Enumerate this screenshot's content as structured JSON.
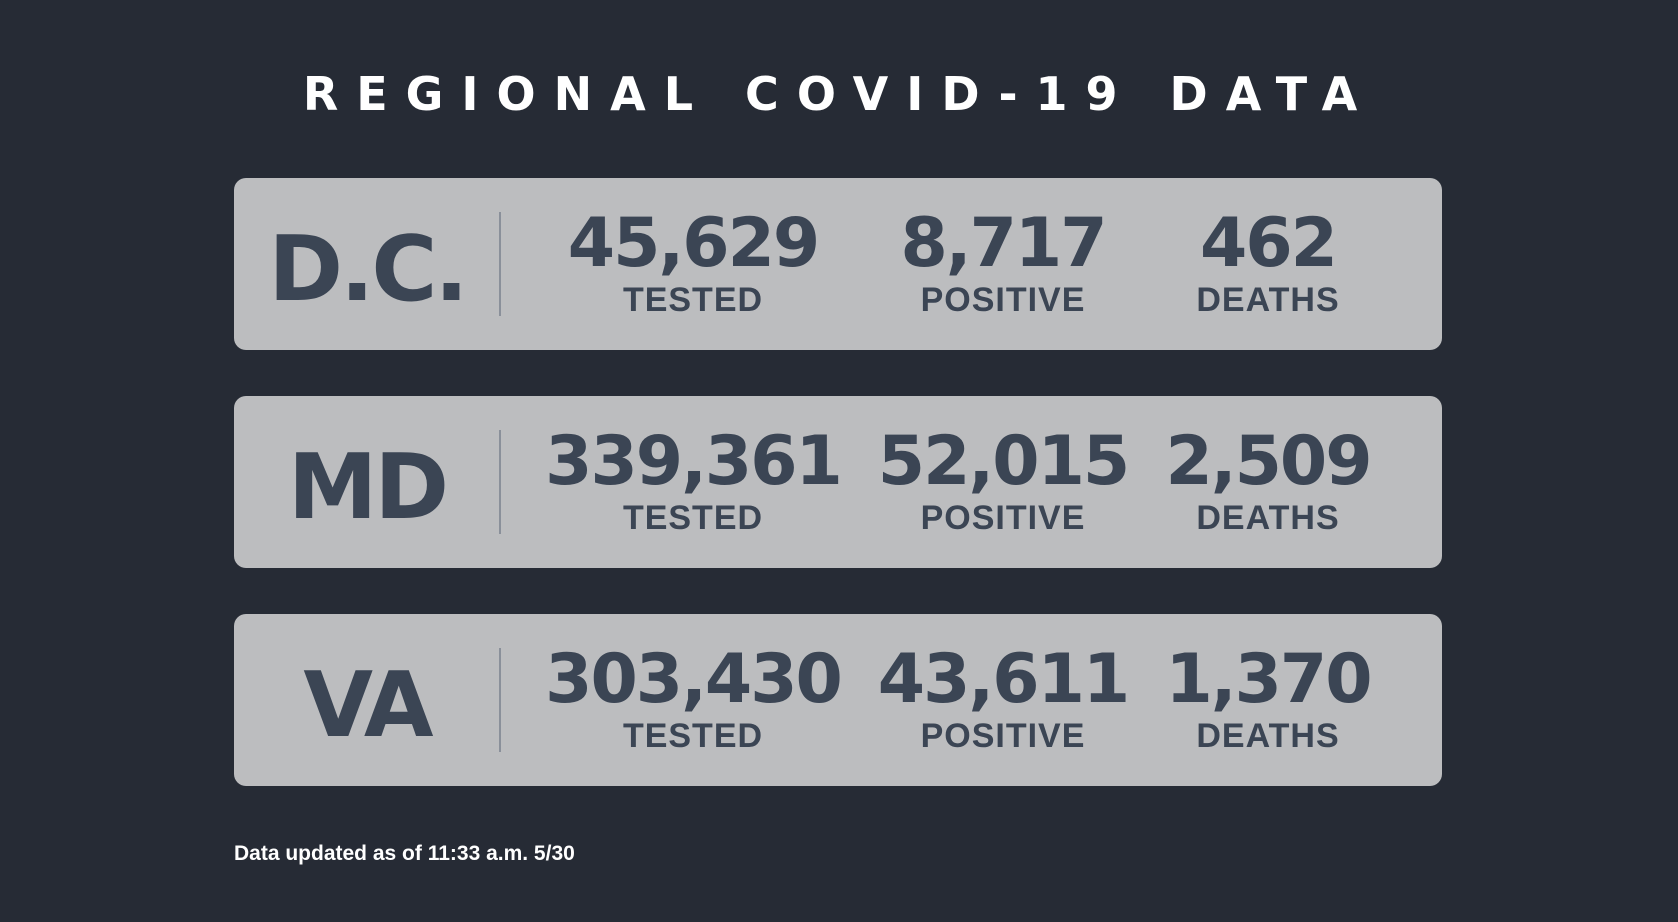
{
  "title": "REGIONAL COVID-19 DATA",
  "regions": [
    {
      "name": "D.C.",
      "tested": "45,629",
      "positive": "8,717",
      "deaths": "462"
    },
    {
      "name": "MD",
      "tested": "339,361",
      "positive": "52,015",
      "deaths": "2,509"
    },
    {
      "name": "VA",
      "tested": "303,430",
      "positive": "43,611",
      "deaths": "1,370"
    }
  ],
  "labels": {
    "tested": "TESTED",
    "positive": "POSITIVE",
    "deaths": "DEATHS"
  },
  "footer": "Data updated as of 11:33 a.m. 5/30",
  "colors": {
    "background": "#262b35",
    "card": "#bcbdbf",
    "text_dark": "#3b4554",
    "text_light": "#ffffff"
  }
}
